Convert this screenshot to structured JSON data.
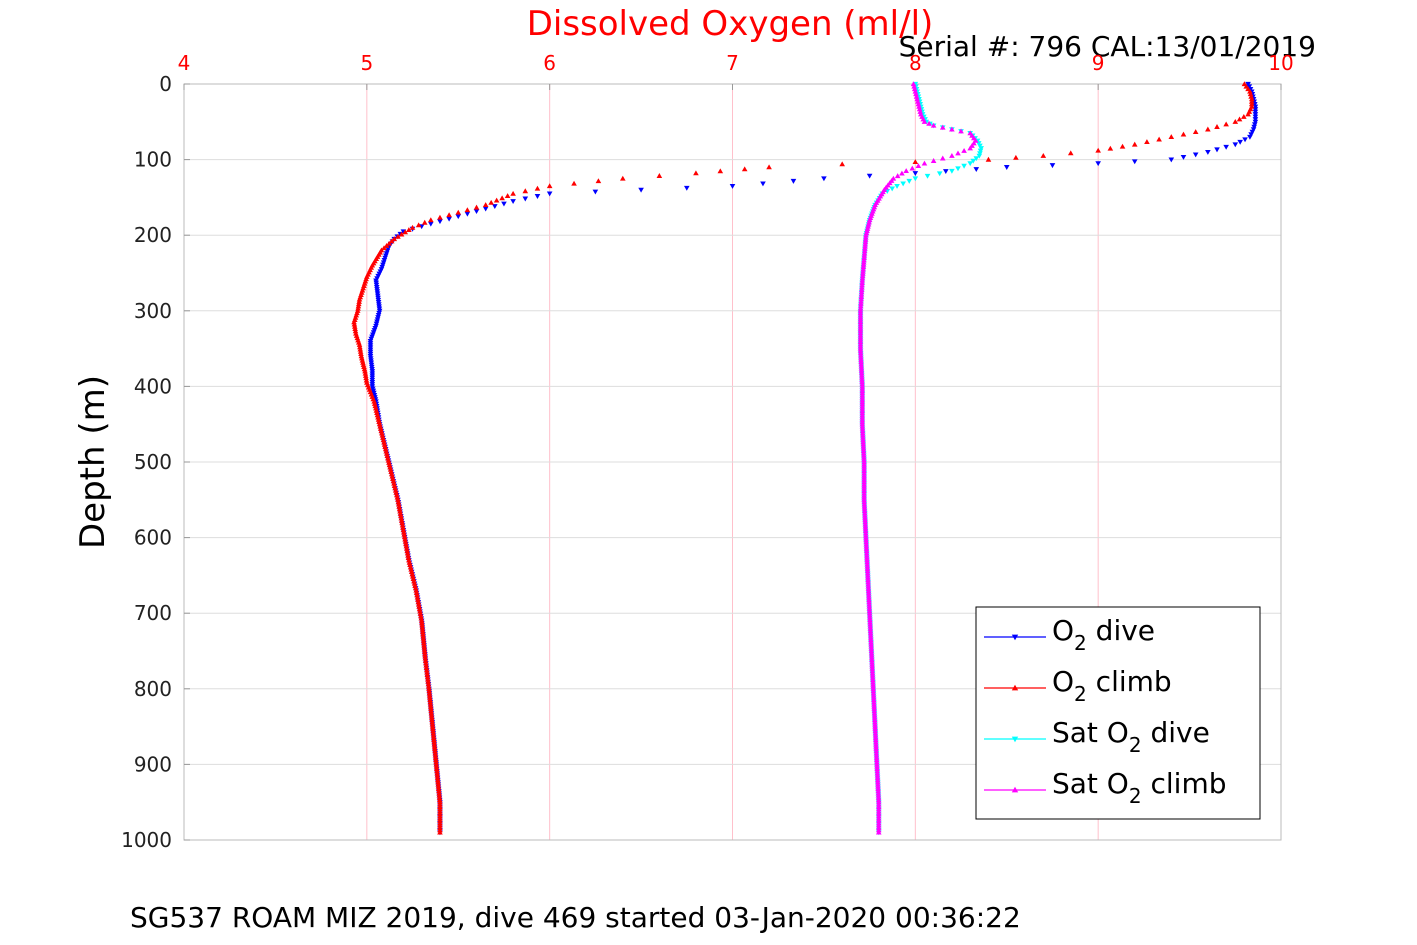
{
  "chart_data": {
    "type": "scatter",
    "title": "Dissolved Oxygen (ml/l)",
    "subtitle": "Serial #: 796  CAL:13/01/2019",
    "caption": "SG537 ROAM MIZ 2019, dive 469 started 03-Jan-2020 00:36:22",
    "xlabel": "",
    "ylabel": "Depth (m)",
    "xlim": [
      4,
      10
    ],
    "ylim": [
      0,
      1000
    ],
    "y_reversed": true,
    "x_axis_position": "top",
    "xticks": [
      "4",
      "5",
      "6",
      "7",
      "8",
      "9",
      "10"
    ],
    "yticks": [
      "0",
      "100",
      "200",
      "300",
      "400",
      "500",
      "600",
      "700",
      "800",
      "900",
      "1000"
    ],
    "grid": true,
    "legend_position": "bottom-right",
    "colors": {
      "title": "#ff0000",
      "xtick": "#ff0000",
      "grid_x": "#ffc0cb",
      "grid_y": "#dddddd"
    },
    "series": [
      {
        "name": "O2 dive",
        "label_main": "O",
        "label_sub": "2",
        "label_rest": " dive",
        "color": "#0000ff",
        "marker": "triangle-down",
        "points": [
          [
            9.82,
            0
          ],
          [
            9.84,
            10
          ],
          [
            9.85,
            20
          ],
          [
            9.86,
            30
          ],
          [
            9.86,
            40
          ],
          [
            9.86,
            50
          ],
          [
            9.85,
            60
          ],
          [
            9.83,
            70
          ],
          [
            9.75,
            80
          ],
          [
            9.6,
            90
          ],
          [
            9.4,
            100
          ],
          [
            9.0,
            105
          ],
          [
            8.5,
            110
          ],
          [
            8.0,
            118
          ],
          [
            7.5,
            125
          ],
          [
            7.0,
            135
          ],
          [
            6.5,
            140
          ],
          [
            6.0,
            145
          ],
          [
            5.8,
            155
          ],
          [
            5.65,
            165
          ],
          [
            5.5,
            175
          ],
          [
            5.35,
            185
          ],
          [
            5.2,
            195
          ],
          [
            5.15,
            205
          ],
          [
            5.12,
            215
          ],
          [
            5.1,
            230
          ],
          [
            5.08,
            245
          ],
          [
            5.05,
            260
          ],
          [
            5.06,
            280
          ],
          [
            5.07,
            300
          ],
          [
            5.05,
            320
          ],
          [
            5.02,
            340
          ],
          [
            5.02,
            360
          ],
          [
            5.03,
            380
          ],
          [
            5.03,
            400
          ],
          [
            5.05,
            420
          ],
          [
            5.07,
            450
          ],
          [
            5.1,
            480
          ],
          [
            5.13,
            510
          ],
          [
            5.17,
            550
          ],
          [
            5.2,
            590
          ],
          [
            5.23,
            630
          ],
          [
            5.27,
            670
          ],
          [
            5.3,
            710
          ],
          [
            5.32,
            760
          ],
          [
            5.34,
            800
          ],
          [
            5.36,
            850
          ],
          [
            5.38,
            900
          ],
          [
            5.4,
            950
          ],
          [
            5.4,
            990
          ]
        ]
      },
      {
        "name": "O2 climb",
        "label_main": "O",
        "label_sub": "2",
        "label_rest": " climb",
        "color": "#ff0000",
        "marker": "triangle-up",
        "points": [
          [
            9.8,
            0
          ],
          [
            9.83,
            10
          ],
          [
            9.84,
            20
          ],
          [
            9.84,
            30
          ],
          [
            9.82,
            40
          ],
          [
            9.75,
            50
          ],
          [
            9.6,
            60
          ],
          [
            9.4,
            70
          ],
          [
            9.2,
            80
          ],
          [
            9.0,
            88
          ],
          [
            8.7,
            95
          ],
          [
            8.4,
            100
          ],
          [
            8.0,
            103
          ],
          [
            7.6,
            106
          ],
          [
            7.2,
            110
          ],
          [
            6.8,
            118
          ],
          [
            6.4,
            125
          ],
          [
            6.0,
            135
          ],
          [
            5.8,
            145
          ],
          [
            5.65,
            160
          ],
          [
            5.5,
            170
          ],
          [
            5.35,
            180
          ],
          [
            5.25,
            190
          ],
          [
            5.15,
            205
          ],
          [
            5.08,
            220
          ],
          [
            5.03,
            240
          ],
          [
            5.0,
            255
          ],
          [
            4.98,
            270
          ],
          [
            4.96,
            285
          ],
          [
            4.95,
            300
          ],
          [
            4.93,
            315
          ],
          [
            4.94,
            330
          ],
          [
            4.96,
            345
          ],
          [
            4.97,
            360
          ],
          [
            4.99,
            380
          ],
          [
            5.0,
            395
          ],
          [
            5.04,
            420
          ],
          [
            5.07,
            450
          ],
          [
            5.1,
            480
          ],
          [
            5.13,
            510
          ],
          [
            5.17,
            550
          ],
          [
            5.2,
            590
          ],
          [
            5.23,
            630
          ],
          [
            5.27,
            670
          ],
          [
            5.3,
            710
          ],
          [
            5.32,
            760
          ],
          [
            5.34,
            800
          ],
          [
            5.36,
            850
          ],
          [
            5.38,
            900
          ],
          [
            5.4,
            950
          ],
          [
            5.4,
            990
          ]
        ]
      },
      {
        "name": "Sat O2 dive",
        "label_main": "Sat O",
        "label_sub": "2",
        "label_rest": " dive",
        "color": "#00ffff",
        "marker": "triangle-down",
        "points": [
          [
            8.0,
            0
          ],
          [
            8.01,
            10
          ],
          [
            8.02,
            20
          ],
          [
            8.03,
            30
          ],
          [
            8.04,
            40
          ],
          [
            8.06,
            50
          ],
          [
            8.1,
            55
          ],
          [
            8.2,
            60
          ],
          [
            8.3,
            65
          ],
          [
            8.34,
            75
          ],
          [
            8.36,
            85
          ],
          [
            8.35,
            95
          ],
          [
            8.3,
            105
          ],
          [
            8.2,
            115
          ],
          [
            8.0,
            125
          ],
          [
            7.9,
            135
          ],
          [
            7.82,
            145
          ],
          [
            7.78,
            160
          ],
          [
            7.75,
            180
          ],
          [
            7.73,
            200
          ],
          [
            7.72,
            230
          ],
          [
            7.71,
            260
          ],
          [
            7.7,
            300
          ],
          [
            7.7,
            350
          ],
          [
            7.71,
            400
          ],
          [
            7.71,
            450
          ],
          [
            7.72,
            500
          ],
          [
            7.72,
            550
          ],
          [
            7.73,
            600
          ],
          [
            7.74,
            650
          ],
          [
            7.75,
            700
          ],
          [
            7.76,
            750
          ],
          [
            7.77,
            800
          ],
          [
            7.78,
            850
          ],
          [
            7.79,
            900
          ],
          [
            7.8,
            950
          ],
          [
            7.8,
            990
          ]
        ]
      },
      {
        "name": "Sat O2 climb",
        "label_main": "Sat O",
        "label_sub": "2",
        "label_rest": " climb",
        "color": "#ff00ff",
        "marker": "triangle-up",
        "points": [
          [
            7.99,
            0
          ],
          [
            8.0,
            10
          ],
          [
            8.01,
            20
          ],
          [
            8.02,
            30
          ],
          [
            8.03,
            40
          ],
          [
            8.05,
            50
          ],
          [
            8.1,
            55
          ],
          [
            8.2,
            60
          ],
          [
            8.3,
            65
          ],
          [
            8.33,
            75
          ],
          [
            8.3,
            85
          ],
          [
            8.2,
            95
          ],
          [
            8.05,
            105
          ],
          [
            7.95,
            115
          ],
          [
            7.88,
            125
          ],
          [
            7.83,
            140
          ],
          [
            7.78,
            160
          ],
          [
            7.75,
            180
          ],
          [
            7.73,
            200
          ],
          [
            7.72,
            230
          ],
          [
            7.71,
            260
          ],
          [
            7.7,
            300
          ],
          [
            7.7,
            350
          ],
          [
            7.71,
            400
          ],
          [
            7.71,
            450
          ],
          [
            7.72,
            500
          ],
          [
            7.72,
            550
          ],
          [
            7.73,
            600
          ],
          [
            7.74,
            650
          ],
          [
            7.75,
            700
          ],
          [
            7.76,
            750
          ],
          [
            7.77,
            800
          ],
          [
            7.78,
            850
          ],
          [
            7.79,
            900
          ],
          [
            7.8,
            950
          ],
          [
            7.8,
            990
          ]
        ]
      }
    ]
  }
}
